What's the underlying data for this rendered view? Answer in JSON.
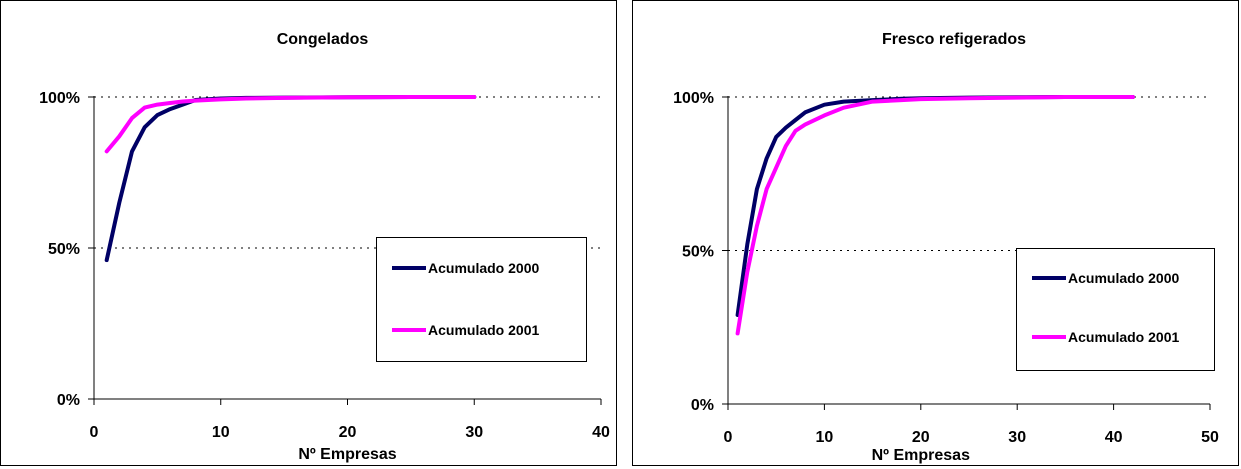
{
  "chart_data": [
    {
      "type": "line",
      "title": "Congelados",
      "xlabel": "Nº Empresas",
      "ylabel": "",
      "xlim": [
        0,
        40
      ],
      "ylim": [
        0,
        100
      ],
      "xticks": [
        0,
        10,
        20,
        30,
        40
      ],
      "yticks": [
        0,
        50,
        100
      ],
      "ytick_labels": [
        "0%",
        "50%",
        "100%"
      ],
      "grid": "horizontal dotted at 50% and 100%",
      "legend_position": "right",
      "series": [
        {
          "name": "Acumulado 2000",
          "color": "#000066",
          "x": [
            1,
            2,
            3,
            4,
            5,
            6,
            7,
            8,
            10,
            12,
            15,
            20,
            25,
            30
          ],
          "y": [
            46,
            65,
            82,
            90,
            94,
            96,
            97.5,
            99,
            99.5,
            99.7,
            99.8,
            99.9,
            100,
            100
          ]
        },
        {
          "name": "Acumulado 2001",
          "color": "#ff00ff",
          "x": [
            1,
            2,
            3,
            4,
            5,
            6,
            7,
            8,
            10,
            12,
            15,
            20,
            25,
            30
          ],
          "y": [
            82,
            87,
            93,
            96.5,
            97.5,
            98,
            98.5,
            98.8,
            99.2,
            99.5,
            99.7,
            99.9,
            100,
            100
          ]
        }
      ]
    },
    {
      "type": "line",
      "title": "Fresco refigerados",
      "xlabel": "Nº Empresas",
      "ylabel": "",
      "xlim": [
        0,
        50
      ],
      "ylim": [
        0,
        100
      ],
      "xticks": [
        0,
        10,
        20,
        30,
        40,
        50
      ],
      "yticks": [
        0,
        50,
        100
      ],
      "ytick_labels": [
        "0%",
        "50%",
        "100%"
      ],
      "grid": "horizontal dotted at 50% and 100%",
      "legend_position": "right",
      "series": [
        {
          "name": "Acumulado 2000",
          "color": "#000066",
          "x": [
            1,
            2,
            3,
            4,
            5,
            6,
            7,
            8,
            10,
            12,
            15,
            18,
            20,
            25,
            30,
            35,
            42
          ],
          "y": [
            29,
            52,
            70,
            80,
            87,
            90,
            92.5,
            95,
            97.5,
            98.5,
            99,
            99.4,
            99.6,
            99.8,
            99.9,
            100,
            100
          ]
        },
        {
          "name": "Acumulado 2001",
          "color": "#ff00ff",
          "x": [
            1,
            2,
            3,
            4,
            5,
            6,
            7,
            8,
            10,
            12,
            15,
            18,
            20,
            25,
            30,
            35,
            42
          ],
          "y": [
            23,
            43,
            58,
            70,
            77,
            84,
            89,
            91,
            94,
            96.5,
            98.5,
            99,
            99.3,
            99.6,
            99.8,
            100,
            100
          ]
        }
      ]
    }
  ]
}
